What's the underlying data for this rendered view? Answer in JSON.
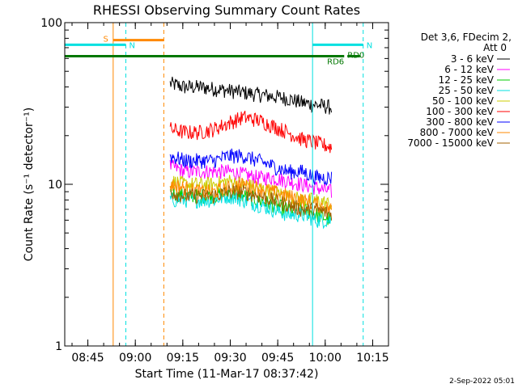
{
  "chart_data": {
    "type": "line",
    "title": "RHESSI Observing Summary Count Rates",
    "xlabel": "Start Time (11-Mar-17 08:37:42)",
    "ylabel": "Count Rate (s⁻¹ detector⁻¹)",
    "y_scale": "log",
    "ylim": [
      1,
      100
    ],
    "x_range": [
      "08:37:42",
      "10:20:00"
    ],
    "x_ticks": [
      "08:45",
      "09:00",
      "09:15",
      "09:30",
      "09:45",
      "10:00",
      "10:15"
    ],
    "y_ticks": [
      "1",
      "10",
      "100"
    ],
    "grid": false,
    "legend_position": "right",
    "legend_header": [
      "Det 3,6, FDecim 2,",
      "Att 0"
    ],
    "series": [
      {
        "name": "3 - 6 keV",
        "color": "#000000",
        "time_range": [
          "09:11",
          "10:02"
        ],
        "values": [
          42,
          40,
          40,
          39,
          38,
          37,
          36,
          35,
          34,
          32,
          31,
          30
        ]
      },
      {
        "name": "6 - 12 keV",
        "color": "#ff00ff",
        "time_range": [
          "09:11",
          "10:02"
        ],
        "values": [
          13,
          12,
          12,
          12,
          12,
          11.5,
          11,
          11,
          10.5,
          10,
          9.5,
          9
        ]
      },
      {
        "name": "12 - 25 keV",
        "color": "#00cc00",
        "time_range": [
          "09:11",
          "10:02"
        ],
        "values": [
          9,
          8.5,
          8.5,
          8.5,
          9,
          8.5,
          8,
          7.5,
          7,
          7,
          6.5,
          6
        ]
      },
      {
        "name": "25 - 50 keV",
        "color": "#00e0e0",
        "time_range": [
          "09:11",
          "10:02"
        ],
        "values": [
          8,
          8,
          8,
          8,
          8.5,
          8,
          7.5,
          7,
          6.5,
          6.5,
          6,
          6
        ]
      },
      {
        "name": "50 - 100 keV",
        "color": "#cccc00",
        "time_range": [
          "09:11",
          "10:02"
        ],
        "values": [
          10.5,
          10,
          10,
          10,
          10.5,
          10,
          9.5,
          9,
          8.5,
          8,
          8,
          7.5
        ]
      },
      {
        "name": "100 - 300 keV",
        "color": "#ff0000",
        "time_range": [
          "09:11",
          "10:02"
        ],
        "values": [
          22,
          21,
          21,
          22,
          24,
          26,
          25,
          23,
          21,
          19,
          18,
          17
        ]
      },
      {
        "name": "300 - 800 keV",
        "color": "#0000ff",
        "time_range": [
          "09:11",
          "10:02"
        ],
        "values": [
          15,
          14,
          14,
          14,
          15,
          15,
          14,
          13,
          12,
          12,
          11,
          11
        ]
      },
      {
        "name": "800 - 7000 keV",
        "color": "#ff8800",
        "time_range": [
          "09:11",
          "10:02"
        ],
        "values": [
          10,
          9.5,
          9,
          9,
          9.5,
          10,
          9.5,
          9,
          8.5,
          8,
          7.5,
          7
        ]
      },
      {
        "name": "7000 - 15000 keV",
        "color": "#a06000",
        "time_range": [
          "09:11",
          "10:02"
        ],
        "values": [
          9,
          8.5,
          8.5,
          8.5,
          9,
          9,
          8.5,
          8,
          7.5,
          7,
          7,
          6.5
        ]
      }
    ],
    "annotations": [
      {
        "label": "S",
        "color": "#ff8800",
        "time_range": [
          "08:53",
          "09:09"
        ],
        "level": 78
      },
      {
        "label": "N",
        "color": "#00e0e0",
        "time_range": [
          "08:37:42",
          "08:57"
        ],
        "level": 73
      },
      {
        "label": "N",
        "color": "#00e0e0",
        "time_range": [
          "09:56",
          "10:12"
        ],
        "level": 73
      },
      {
        "label": "RD0",
        "color": "#007700",
        "time_range": [
          "08:37:42",
          "10:06"
        ],
        "level": 62
      },
      {
        "label": "RD6",
        "color": "#007700",
        "time_range": [
          "10:07",
          "10:11"
        ],
        "level": 62
      }
    ],
    "vertical_markers": [
      {
        "time": "08:53",
        "color": "#ff8800",
        "style": "solid"
      },
      {
        "time": "09:09",
        "color": "#ff8800",
        "style": "dashed"
      },
      {
        "time": "08:57",
        "color": "#00e0e0",
        "style": "dashed"
      },
      {
        "time": "08:37:42",
        "color": "#00e0e0",
        "style": "solid"
      },
      {
        "time": "09:56",
        "color": "#00e0e0",
        "style": "solid"
      },
      {
        "time": "10:12",
        "color": "#00e0e0",
        "style": "dashed"
      }
    ]
  },
  "footer": {
    "date": "2-Sep-2022 05:01"
  }
}
